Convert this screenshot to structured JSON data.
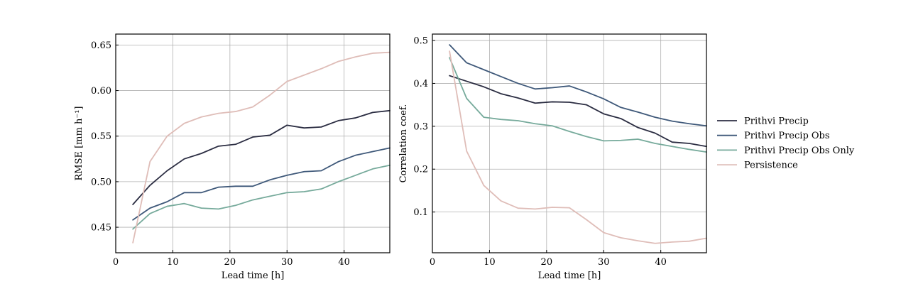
{
  "chart_data": [
    {
      "type": "line",
      "title": "",
      "xlabel": "Lead time [h]",
      "ylabel": "RMSE [mm h⁻¹]",
      "xlim": [
        0,
        48
      ],
      "ylim": [
        0.422,
        0.662
      ],
      "xticks": [
        0,
        10,
        20,
        30,
        40
      ],
      "xtick_labels": [
        "0",
        "10",
        "20",
        "30",
        "40"
      ],
      "yticks": [
        0.45,
        0.5,
        0.55,
        0.6,
        0.65
      ],
      "ytick_labels": [
        "0.45",
        "0.50",
        "0.55",
        "0.60",
        "0.65"
      ],
      "grid": true,
      "x": [
        3,
        6,
        9,
        12,
        15,
        18,
        21,
        24,
        27,
        30,
        33,
        36,
        39,
        42,
        45,
        48
      ],
      "series": [
        {
          "name": "Prithvi Precip",
          "color": "#2b2d42",
          "values": [
            0.475,
            0.496,
            0.512,
            0.525,
            0.531,
            0.539,
            0.541,
            0.549,
            0.551,
            0.562,
            0.559,
            0.56,
            0.567,
            0.57,
            0.576,
            0.578
          ]
        },
        {
          "name": "Prithvi Precip Obs",
          "color": "#3e5879",
          "values": [
            0.458,
            0.471,
            0.478,
            0.488,
            0.488,
            0.494,
            0.495,
            0.495,
            0.502,
            0.507,
            0.511,
            0.512,
            0.522,
            0.529,
            0.533,
            0.537
          ]
        },
        {
          "name": "Prithvi Precip Obs Only",
          "color": "#76aa9b",
          "values": [
            0.448,
            0.465,
            0.473,
            0.476,
            0.471,
            0.47,
            0.474,
            0.48,
            0.484,
            0.488,
            0.489,
            0.492,
            0.5,
            0.507,
            0.514,
            0.518
          ]
        },
        {
          "name": "Persistence",
          "color": "#dfbdb8",
          "values": [
            0.433,
            0.522,
            0.55,
            0.564,
            0.571,
            0.575,
            0.577,
            0.582,
            0.595,
            0.61,
            0.617,
            0.624,
            0.632,
            0.637,
            0.641,
            0.642
          ]
        }
      ]
    },
    {
      "type": "line",
      "title": "",
      "xlabel": "Lead time [h]",
      "ylabel": "Correlation coef.",
      "xlim": [
        0,
        48
      ],
      "ylim": [
        0.005,
        0.515
      ],
      "xticks": [
        0,
        10,
        20,
        30,
        40
      ],
      "xtick_labels": [
        "0",
        "10",
        "20",
        "30",
        "40"
      ],
      "yticks": [
        0.1,
        0.2,
        0.3,
        0.4,
        0.5
      ],
      "ytick_labels": [
        "0.1",
        "0.2",
        "0.3",
        "0.4",
        "0.5"
      ],
      "grid": true,
      "x": [
        3,
        6,
        9,
        12,
        15,
        18,
        21,
        24,
        27,
        30,
        33,
        36,
        39,
        42,
        45,
        48
      ],
      "series": [
        {
          "name": "Prithvi Precip",
          "color": "#2b2d42",
          "values": [
            0.418,
            0.405,
            0.392,
            0.376,
            0.366,
            0.354,
            0.357,
            0.356,
            0.35,
            0.329,
            0.318,
            0.297,
            0.284,
            0.263,
            0.26,
            0.253
          ]
        },
        {
          "name": "Prithvi Precip Obs",
          "color": "#3e5879",
          "values": [
            0.49,
            0.448,
            0.432,
            0.416,
            0.4,
            0.387,
            0.39,
            0.394,
            0.38,
            0.364,
            0.344,
            0.333,
            0.321,
            0.312,
            0.306,
            0.301
          ]
        },
        {
          "name": "Prithvi Precip Obs Only",
          "color": "#76aa9b",
          "values": [
            0.46,
            0.365,
            0.321,
            0.316,
            0.313,
            0.306,
            0.301,
            0.288,
            0.276,
            0.266,
            0.267,
            0.27,
            0.26,
            0.253,
            0.246,
            0.24
          ]
        },
        {
          "name": "Persistence",
          "color": "#dfbdb8",
          "values": [
            0.475,
            0.242,
            0.162,
            0.126,
            0.109,
            0.107,
            0.111,
            0.11,
            0.082,
            0.052,
            0.04,
            0.033,
            0.027,
            0.03,
            0.032,
            0.039
          ]
        }
      ]
    }
  ],
  "legend": {
    "placement": "right",
    "entries": [
      "Prithvi Precip",
      "Prithvi Precip Obs",
      "Prithvi Precip Obs Only",
      "Persistence"
    ]
  }
}
